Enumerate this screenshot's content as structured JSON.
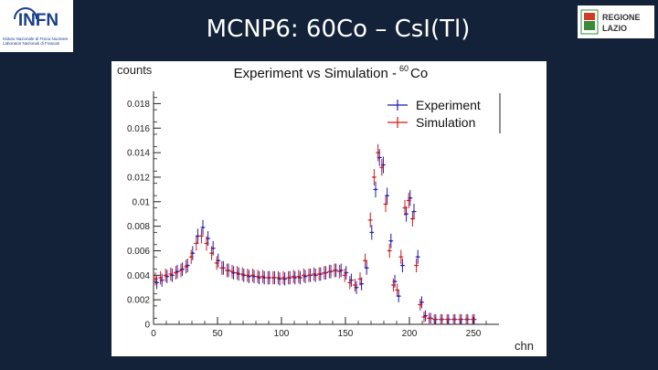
{
  "header": {
    "title": "MCNP6: 60Co – CsI(Tl)",
    "logo_left_text": "INFN",
    "logo_left_subtitle": "Istituto Nazionale di Fisica Nucleare Laboratori Nazionali di Frascati",
    "logo_right_text_1": "REGIONE",
    "logo_right_text_2": "LAZIO"
  },
  "colors": {
    "background": "#132238",
    "experiment": "#1a1ab0",
    "simulation": "#d01818",
    "infn_blue": "#1a3f8a",
    "lazio_green": "#3a8a3a"
  },
  "chart_data": {
    "type": "scatter",
    "title": "Experiment vs Simulation - 60Co",
    "title_prefix": "Experiment vs Simulation -",
    "title_mass_number": "60",
    "title_element": "Co",
    "ylabel": "counts",
    "xlabel": "chn",
    "xlim": [
      0,
      270
    ],
    "ylim": [
      0,
      0.019
    ],
    "xticks": [
      0,
      50,
      100,
      150,
      200,
      250
    ],
    "yticks": [
      0,
      0.002,
      0.004,
      0.006,
      0.008,
      0.01,
      0.012,
      0.014,
      0.016,
      0.018
    ],
    "ytick_labels": [
      "0",
      "0.002",
      "0.004",
      "0.006",
      "0.008",
      "0.01",
      "0.012",
      "0.014",
      "0.016",
      "0.018"
    ],
    "grid": false,
    "legend_position": "top-right",
    "series": [
      {
        "name": "Experiment",
        "points": [
          [
            2,
            0.0034
          ],
          [
            6,
            0.0036
          ],
          [
            10,
            0.0039
          ],
          [
            14,
            0.004
          ],
          [
            18,
            0.0043
          ],
          [
            22,
            0.0045
          ],
          [
            26,
            0.0048
          ],
          [
            30,
            0.0058
          ],
          [
            34,
            0.0072
          ],
          [
            38,
            0.0079
          ],
          [
            42,
            0.007
          ],
          [
            46,
            0.0062
          ],
          [
            50,
            0.0052
          ],
          [
            54,
            0.0046
          ],
          [
            58,
            0.0044
          ],
          [
            62,
            0.0042
          ],
          [
            66,
            0.0041
          ],
          [
            70,
            0.004
          ],
          [
            74,
            0.0039
          ],
          [
            78,
            0.0039
          ],
          [
            82,
            0.0038
          ],
          [
            86,
            0.0038
          ],
          [
            90,
            0.0038
          ],
          [
            94,
            0.0038
          ],
          [
            98,
            0.0037
          ],
          [
            102,
            0.0037
          ],
          [
            106,
            0.0038
          ],
          [
            110,
            0.0038
          ],
          [
            114,
            0.0038
          ],
          [
            118,
            0.0039
          ],
          [
            122,
            0.004
          ],
          [
            126,
            0.004
          ],
          [
            130,
            0.0041
          ],
          [
            134,
            0.0042
          ],
          [
            138,
            0.0043
          ],
          [
            142,
            0.0044
          ],
          [
            146,
            0.0044
          ],
          [
            150,
            0.0042
          ],
          [
            154,
            0.0036
          ],
          [
            158,
            0.003
          ],
          [
            162,
            0.0033
          ],
          [
            166,
            0.0046
          ],
          [
            170,
            0.0075
          ],
          [
            173,
            0.011
          ],
          [
            176,
            0.0136
          ],
          [
            179,
            0.013
          ],
          [
            182,
            0.0105
          ],
          [
            185,
            0.0068
          ],
          [
            188,
            0.0035
          ],
          [
            191,
            0.0023
          ],
          [
            194,
            0.0048
          ],
          [
            197,
            0.009
          ],
          [
            200,
            0.0103
          ],
          [
            203,
            0.0092
          ],
          [
            206,
            0.0055
          ],
          [
            209,
            0.0018
          ],
          [
            212,
            0.0007
          ],
          [
            216,
            0.0005
          ],
          [
            220,
            0.0004
          ],
          [
            225,
            0.0004
          ],
          [
            230,
            0.0004
          ],
          [
            235,
            0.0004
          ],
          [
            240,
            0.0004
          ],
          [
            245,
            0.0004
          ],
          [
            250,
            0.0004
          ]
        ]
      },
      {
        "name": "Simulation",
        "points": [
          [
            2,
            0.0037
          ],
          [
            6,
            0.0038
          ],
          [
            10,
            0.004
          ],
          [
            14,
            0.0041
          ],
          [
            18,
            0.0042
          ],
          [
            22,
            0.0044
          ],
          [
            26,
            0.0047
          ],
          [
            30,
            0.0055
          ],
          [
            34,
            0.0066
          ],
          [
            38,
            0.0072
          ],
          [
            42,
            0.0066
          ],
          [
            46,
            0.0058
          ],
          [
            50,
            0.005
          ],
          [
            54,
            0.0046
          ],
          [
            58,
            0.0044
          ],
          [
            62,
            0.0043
          ],
          [
            66,
            0.0042
          ],
          [
            70,
            0.0041
          ],
          [
            74,
            0.004
          ],
          [
            78,
            0.004
          ],
          [
            82,
            0.0039
          ],
          [
            86,
            0.0039
          ],
          [
            90,
            0.0038
          ],
          [
            94,
            0.0038
          ],
          [
            98,
            0.0038
          ],
          [
            102,
            0.0038
          ],
          [
            106,
            0.0038
          ],
          [
            110,
            0.0039
          ],
          [
            114,
            0.0039
          ],
          [
            118,
            0.004
          ],
          [
            122,
            0.004
          ],
          [
            126,
            0.0041
          ],
          [
            130,
            0.0041
          ],
          [
            134,
            0.0042
          ],
          [
            138,
            0.0043
          ],
          [
            142,
            0.0044
          ],
          [
            146,
            0.0043
          ],
          [
            150,
            0.004
          ],
          [
            154,
            0.0034
          ],
          [
            158,
            0.0032
          ],
          [
            162,
            0.0037
          ],
          [
            166,
            0.0052
          ],
          [
            170,
            0.0085
          ],
          [
            173,
            0.012
          ],
          [
            176,
            0.014
          ],
          [
            179,
            0.0128
          ],
          [
            182,
            0.0098
          ],
          [
            185,
            0.006
          ],
          [
            188,
            0.0032
          ],
          [
            191,
            0.0028
          ],
          [
            194,
            0.0055
          ],
          [
            197,
            0.0095
          ],
          [
            200,
            0.0101
          ],
          [
            203,
            0.0086
          ],
          [
            206,
            0.0048
          ],
          [
            209,
            0.0016
          ],
          [
            212,
            0.0006
          ],
          [
            216,
            0.0005
          ],
          [
            220,
            0.0004
          ],
          [
            225,
            0.0004
          ],
          [
            230,
            0.0004
          ],
          [
            235,
            0.0004
          ],
          [
            240,
            0.0004
          ],
          [
            245,
            0.0004
          ],
          [
            250,
            0.0004
          ]
        ]
      }
    ]
  }
}
